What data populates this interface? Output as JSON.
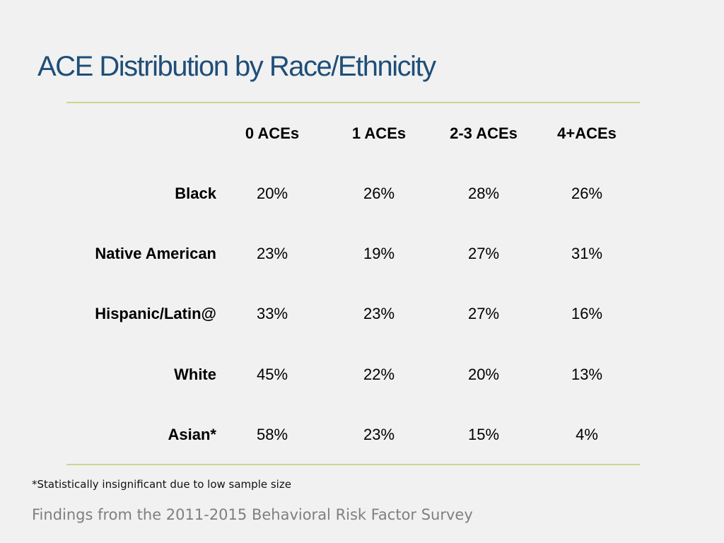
{
  "slide": {
    "title": "ACE Distribution by Race/Ethnicity",
    "footnote": "*Statistically insignificant due to low sample size",
    "source": "Findings from the 2011-2015 Behavioral Risk Factor Survey"
  },
  "table": {
    "columns": [
      "0 ACEs",
      "1 ACEs",
      "2-3 ACEs",
      "4+ACEs"
    ],
    "rows": [
      {
        "label": "Black",
        "values": [
          "20%",
          "26%",
          "28%",
          "26%"
        ]
      },
      {
        "label": "Native American",
        "values": [
          "23%",
          "19%",
          "27%",
          "31%"
        ]
      },
      {
        "label": "Hispanic/Latin@",
        "values": [
          "33%",
          "23%",
          "27%",
          "16%"
        ]
      },
      {
        "label": "White",
        "values": [
          "45%",
          "22%",
          "20%",
          "13%"
        ]
      },
      {
        "label": "Asian*",
        "values": [
          "58%",
          "23%",
          "15%",
          "4%"
        ]
      }
    ]
  },
  "colors": {
    "title": "#1f4e79",
    "rule": "#c5d98e",
    "background": "#f1f1f1",
    "source_text": "#7f7f7f"
  }
}
